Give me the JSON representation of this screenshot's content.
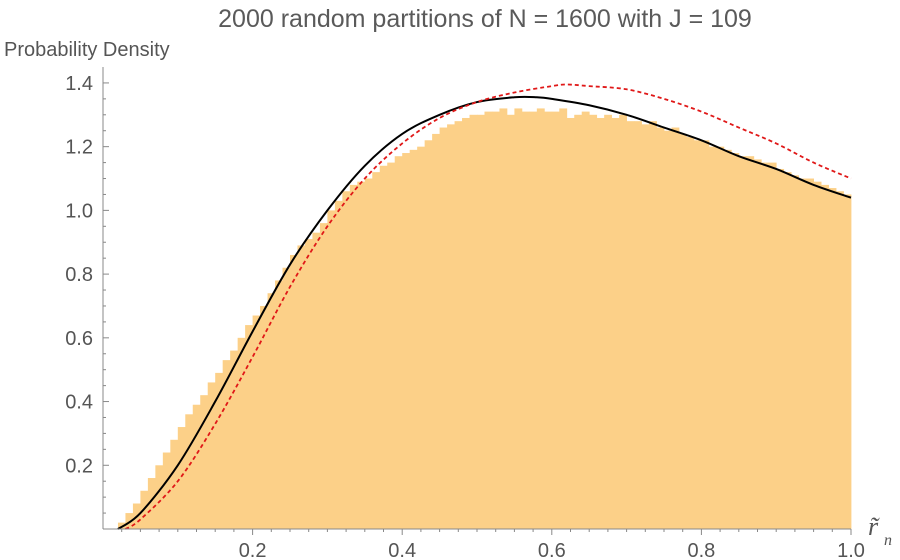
{
  "chart_data": {
    "type": "histogram",
    "title": "2000 random partitions of N = 1600 with J = 109",
    "ylabel": "Probability Density",
    "xlabel": "r̃",
    "xlabel_subscript": "n",
    "xlim": [
      0,
      1.0
    ],
    "ylim": [
      0,
      1.45
    ],
    "x_ticks": [
      "0.2",
      "0.4",
      "0.6",
      "0.8",
      "1.0"
    ],
    "y_ticks": [
      "0.2",
      "0.4",
      "0.6",
      "0.8",
      "1.0",
      "1.2",
      "1.4"
    ],
    "x_tick_values": [
      0.2,
      0.4,
      0.6,
      0.8,
      1.0
    ],
    "y_tick_values": [
      0.2,
      0.4,
      0.6,
      0.8,
      1.0,
      1.2,
      1.4
    ],
    "histogram": {
      "color": "#fcd088",
      "bin_width": 0.01,
      "bin_start": 0.0,
      "values": [
        0.0,
        0.0,
        0.02,
        0.05,
        0.08,
        0.12,
        0.16,
        0.2,
        0.24,
        0.28,
        0.32,
        0.36,
        0.39,
        0.42,
        0.46,
        0.49,
        0.53,
        0.56,
        0.6,
        0.64,
        0.67,
        0.7,
        0.74,
        0.78,
        0.82,
        0.86,
        0.89,
        0.91,
        0.93,
        0.96,
        1.0,
        1.03,
        1.06,
        1.08,
        1.09,
        1.1,
        1.12,
        1.14,
        1.15,
        1.17,
        1.18,
        1.19,
        1.2,
        1.22,
        1.24,
        1.26,
        1.27,
        1.28,
        1.29,
        1.3,
        1.3,
        1.31,
        1.31,
        1.32,
        1.3,
        1.32,
        1.31,
        1.31,
        1.32,
        1.31,
        1.31,
        1.32,
        1.29,
        1.3,
        1.31,
        1.3,
        1.29,
        1.3,
        1.29,
        1.3,
        1.28,
        1.28,
        1.27,
        1.28,
        1.26,
        1.25,
        1.26,
        1.24,
        1.23,
        1.22,
        1.22,
        1.2,
        1.2,
        1.19,
        1.18,
        1.17,
        1.17,
        1.16,
        1.15,
        1.15,
        1.13,
        1.12,
        1.11,
        1.1,
        1.1,
        1.09,
        1.08,
        1.07,
        1.06,
        1.05
      ]
    },
    "curves": [
      {
        "style": "solid",
        "color": "#000000",
        "x": [
          0.02,
          0.05,
          0.1,
          0.15,
          0.2,
          0.25,
          0.3,
          0.35,
          0.4,
          0.45,
          0.5,
          0.55,
          0.58,
          0.6,
          0.65,
          0.7,
          0.75,
          0.8,
          0.85,
          0.9,
          0.95,
          1.0
        ],
        "y": [
          0.0,
          0.05,
          0.2,
          0.4,
          0.62,
          0.83,
          1.0,
          1.14,
          1.24,
          1.3,
          1.34,
          1.355,
          1.355,
          1.35,
          1.33,
          1.3,
          1.26,
          1.22,
          1.17,
          1.13,
          1.08,
          1.04
        ]
      },
      {
        "style": "dashed",
        "color": "#e01818",
        "x": [
          0.03,
          0.05,
          0.1,
          0.15,
          0.2,
          0.25,
          0.3,
          0.35,
          0.4,
          0.45,
          0.5,
          0.55,
          0.6,
          0.62,
          0.65,
          0.7,
          0.75,
          0.8,
          0.85,
          0.9,
          0.95,
          1.0
        ],
        "y": [
          0.0,
          0.03,
          0.15,
          0.33,
          0.54,
          0.76,
          0.95,
          1.1,
          1.21,
          1.29,
          1.34,
          1.37,
          1.39,
          1.395,
          1.39,
          1.38,
          1.35,
          1.31,
          1.26,
          1.21,
          1.15,
          1.1
        ]
      }
    ]
  }
}
